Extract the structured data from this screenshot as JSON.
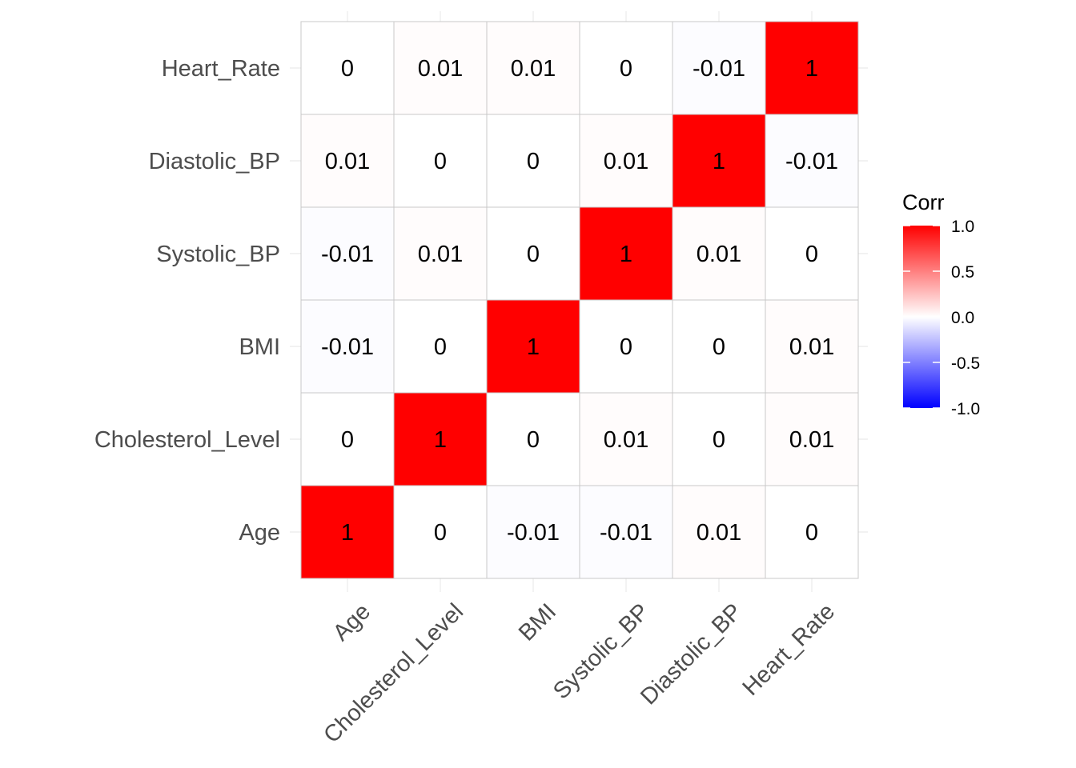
{
  "chart_data": {
    "type": "heatmap",
    "variables": [
      "Age",
      "Cholesterol_Level",
      "BMI",
      "Systolic_BP",
      "Diastolic_BP",
      "Heart_Rate"
    ],
    "x_order": [
      "Age",
      "Cholesterol_Level",
      "BMI",
      "Systolic_BP",
      "Diastolic_BP",
      "Heart_Rate"
    ],
    "y_order_bottom_to_top": [
      "Age",
      "Cholesterol_Level",
      "BMI",
      "Systolic_BP",
      "Diastolic_BP",
      "Heart_Rate"
    ],
    "matrix": [
      [
        1,
        0,
        -0.01,
        -0.01,
        0.01,
        0
      ],
      [
        0,
        1,
        0,
        0.01,
        0,
        0.01
      ],
      [
        -0.01,
        0,
        1,
        0,
        0,
        0.01
      ],
      [
        -0.01,
        0.01,
        0,
        1,
        0.01,
        0
      ],
      [
        0.01,
        0,
        0,
        0.01,
        1,
        -0.01
      ],
      [
        0,
        0.01,
        0.01,
        0,
        -0.01,
        1
      ]
    ],
    "color_scale": {
      "title": "Corr",
      "limits": [
        -1,
        1
      ],
      "ticks": [
        "1.0",
        "0.5",
        "0.0",
        "-0.5",
        "-1.0"
      ],
      "tick_values": [
        1,
        0.5,
        0,
        -0.5,
        -1
      ],
      "low_color": "#0000ff",
      "mid_color": "#ffffff",
      "high_color": "#ff0000"
    },
    "grid": true,
    "legend_position": "right"
  }
}
